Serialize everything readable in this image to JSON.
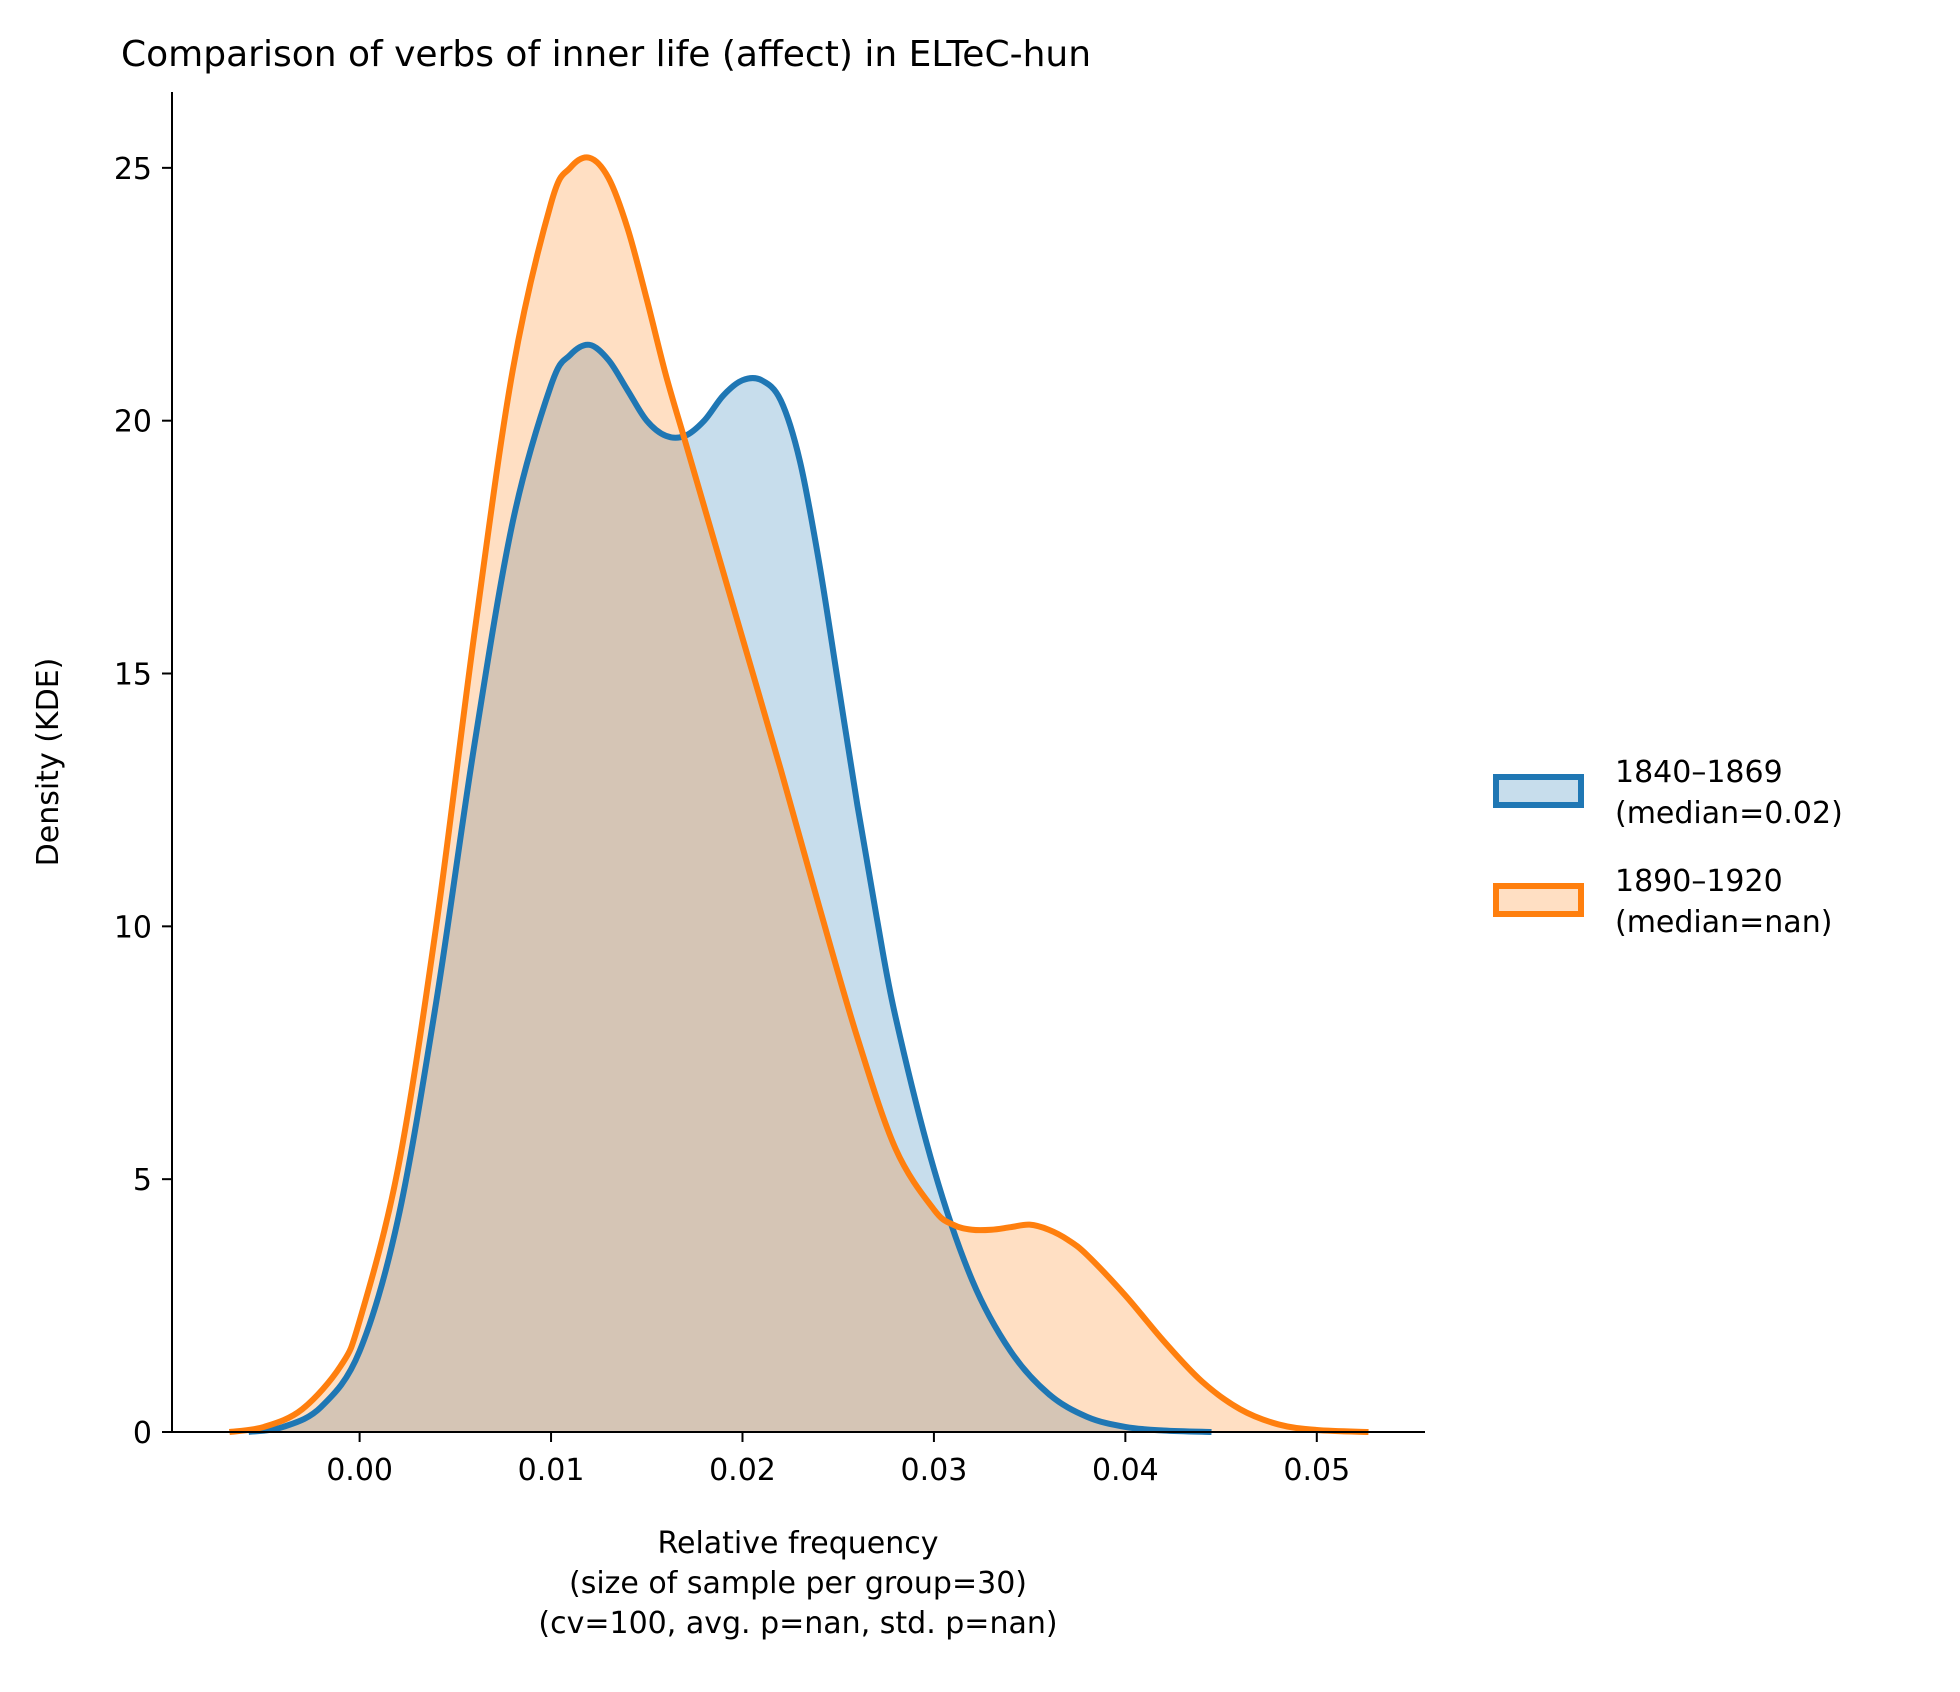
{
  "chart_data": {
    "type": "area",
    "title": "Comparison of verbs of inner life (affect) in ELTeC-hun",
    "xlabel_lines": [
      "Relative frequency",
      "(size of sample per group=30)",
      "(cv=100, avg. p=nan, std. p=nan)"
    ],
    "ylabel": "Density (KDE)",
    "xlim": [
      -0.0098,
      0.0556
    ],
    "ylim": [
      0,
      26.5
    ],
    "xticks": [
      0.0,
      0.01,
      0.02,
      0.03,
      0.04,
      0.05
    ],
    "xtick_labels": [
      "0.00",
      "0.01",
      "0.02",
      "0.03",
      "0.04",
      "0.05"
    ],
    "yticks": [
      0,
      5,
      10,
      15,
      20,
      25
    ],
    "ytick_labels": [
      "0",
      "5",
      "10",
      "15",
      "20",
      "25"
    ],
    "legend_placement": "right",
    "grid": false,
    "series": [
      {
        "name": "1840–1869\n(median=0.02)",
        "name_lines": [
          "1840–1869",
          "(median=0.02)"
        ],
        "color": "#1f77b4",
        "fill": "rgba(31,119,180,0.25)",
        "x": [
          -0.0058,
          -0.004,
          -0.002,
          0.0,
          0.002,
          0.004,
          0.006,
          0.008,
          0.01,
          0.011,
          0.012,
          0.013,
          0.014,
          0.015,
          0.016,
          0.017,
          0.018,
          0.019,
          0.02,
          0.021,
          0.022,
          0.023,
          0.024,
          0.025,
          0.026,
          0.027,
          0.028,
          0.03,
          0.032,
          0.034,
          0.036,
          0.038,
          0.04,
          0.042,
          0.0445
        ],
        "y": [
          0.0,
          0.1,
          0.5,
          1.6,
          4.2,
          8.5,
          13.6,
          18.0,
          20.7,
          21.3,
          21.5,
          21.2,
          20.6,
          20.0,
          19.7,
          19.7,
          20.0,
          20.5,
          20.8,
          20.8,
          20.4,
          19.2,
          17.2,
          14.8,
          12.4,
          10.2,
          8.2,
          5.2,
          3.0,
          1.6,
          0.75,
          0.3,
          0.1,
          0.03,
          0.0
        ]
      },
      {
        "name": "1890–1920\n(median=nan)",
        "name_lines": [
          "1890–1920",
          "(median=nan)"
        ],
        "color": "#ff7f0e",
        "fill": "rgba(255,127,14,0.25)",
        "x": [
          -0.0068,
          -0.005,
          -0.003,
          -0.001,
          0.0,
          0.002,
          0.004,
          0.006,
          0.008,
          0.01,
          0.011,
          0.012,
          0.013,
          0.014,
          0.015,
          0.016,
          0.017,
          0.018,
          0.02,
          0.022,
          0.024,
          0.026,
          0.028,
          0.03,
          0.031,
          0.032,
          0.033,
          0.034,
          0.035,
          0.036,
          0.037,
          0.038,
          0.04,
          0.042,
          0.044,
          0.046,
          0.048,
          0.05,
          0.0527
        ],
        "y": [
          0.0,
          0.1,
          0.45,
          1.3,
          2.2,
          5.2,
          10.0,
          15.8,
          21.0,
          24.3,
          25.0,
          25.2,
          24.8,
          23.8,
          22.4,
          20.9,
          19.6,
          18.3,
          15.7,
          13.1,
          10.4,
          7.8,
          5.6,
          4.4,
          4.1,
          4.0,
          4.0,
          4.05,
          4.1,
          4.0,
          3.8,
          3.5,
          2.7,
          1.8,
          1.0,
          0.45,
          0.15,
          0.04,
          0.0
        ]
      }
    ]
  }
}
